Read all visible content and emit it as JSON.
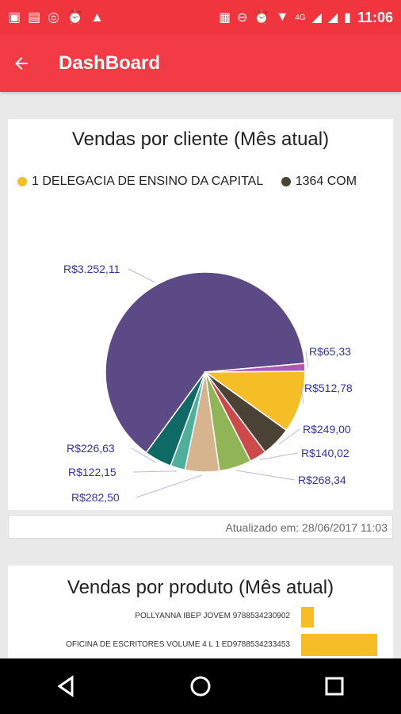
{
  "status_bar": {
    "time": "11:06",
    "network": "4G",
    "icons": [
      "message-icon",
      "chat-icon",
      "whatsapp-icon",
      "alarm-icon",
      "app-icon",
      "cast-icon",
      "dnd-icon",
      "alarm-icon",
      "wifi-icon",
      "signal-icon",
      "signal-icon",
      "battery-icon"
    ]
  },
  "app_bar": {
    "title": "DashBoard"
  },
  "client_card": {
    "title": "Vendas por cliente (Mês atual)",
    "legend": [
      {
        "label": "1 DELEGACIA DE ENSINO DA CAPITAL",
        "color": "#f5be26"
      },
      {
        "label": "1364 COM",
        "color": "#4a4234"
      }
    ],
    "updated": "Atualizado em: 28/06/2017 11:03"
  },
  "chart_data": {
    "type": "pie",
    "title": "Vendas por cliente (Mês atual)",
    "slices": [
      {
        "label": "R$3.252,11",
        "value": 3252.11,
        "color": "#5b4a86"
      },
      {
        "label": "R$65,33",
        "value": 65.33,
        "color": "#b058b8"
      },
      {
        "label": "R$512,78",
        "value": 512.78,
        "color": "#f5be26"
      },
      {
        "label": "R$249,00",
        "value": 249.0,
        "color": "#4a4234"
      },
      {
        "label": "R$140,02",
        "value": 140.02,
        "color": "#cc4a4a"
      },
      {
        "label": "R$268,34",
        "value": 268.34,
        "color": "#8fb556"
      },
      {
        "label": "R$282,50",
        "value": 282.5,
        "color": "#d5b48e"
      },
      {
        "label": "R$122,15",
        "value": 122.15,
        "color": "#4faf9a"
      },
      {
        "label": "R$226,63",
        "value": 226.63,
        "color": "#0f6a66"
      }
    ]
  },
  "product_card": {
    "title": "Vendas por produto (Mês atual)",
    "items": [
      {
        "label": "POLLYANNA IBEP JOVEM 9788534230902",
        "value": 1,
        "color": "#f5be26"
      },
      {
        "label": "OFICINA DE ESCRITORES VOLUME 4 L 1 ED9788534233453",
        "value": 6,
        "color": "#f5be26"
      }
    ]
  }
}
